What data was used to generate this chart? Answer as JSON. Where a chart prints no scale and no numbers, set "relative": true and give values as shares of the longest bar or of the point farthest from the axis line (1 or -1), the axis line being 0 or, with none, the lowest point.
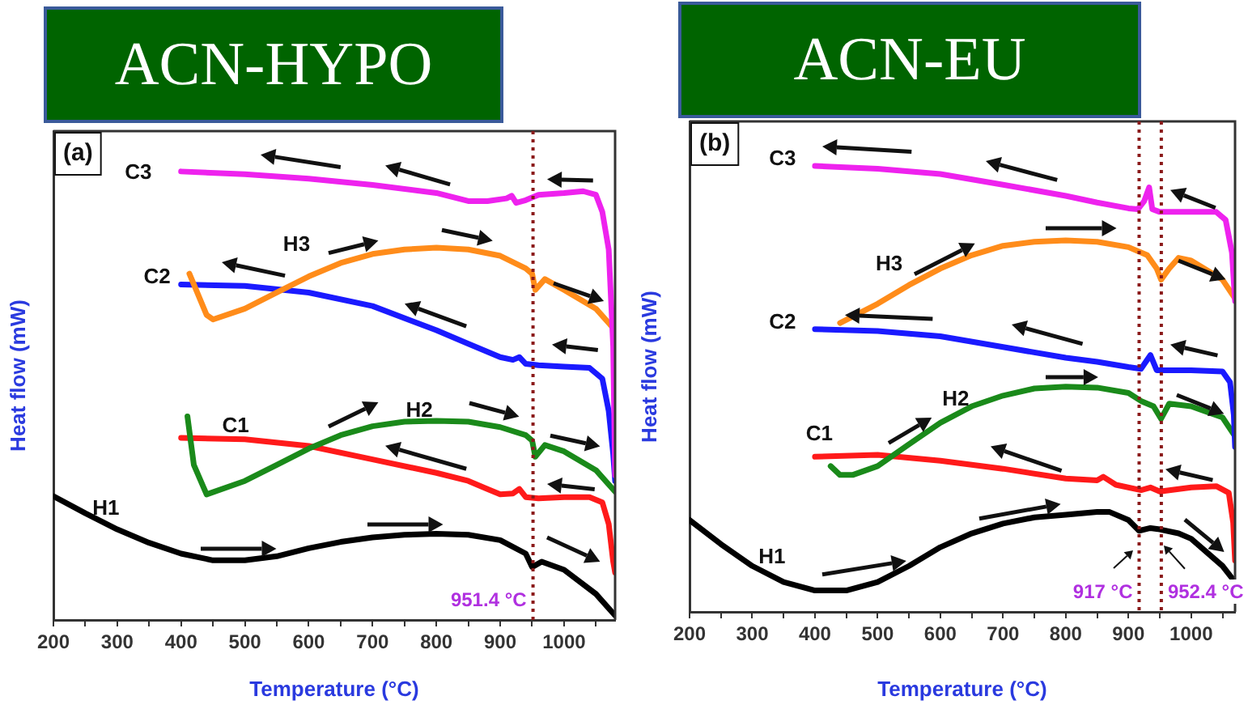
{
  "chart_data": [
    {
      "type": "line",
      "title": "ACN-HYPO",
      "xlabel": "Temperature (°C)",
      "ylabel": "Heat flow (mW)",
      "relative": true,
      "marker": "none",
      "grid": false,
      "annotations": [
        "(a)"
      ],
      "xlim": [
        200,
        1080
      ],
      "xticks": [
        200,
        {
          "value": 250,
          "label": null
        },
        300,
        {
          "value": 350,
          "label": null
        },
        400,
        {
          "value": 450,
          "label": null
        },
        500,
        {
          "value": 550,
          "label": null
        },
        600,
        {
          "value": 650,
          "label": null
        },
        700,
        {
          "value": 750,
          "label": null
        },
        800,
        {
          "value": 850,
          "label": null
        },
        900,
        {
          "value": 950,
          "label": null
        },
        1000,
        {
          "value": 1050,
          "label": null
        }
      ],
      "ref_lines": [
        {
          "axis": "x",
          "value": 951.4,
          "label": "951.4 °C",
          "color": "#8b1a1a",
          "line_style": "dotted"
        }
      ],
      "series": [
        {
          "name": "C3",
          "color": "#ee22ee",
          "x": [
            400,
            500,
            600,
            700,
            800,
            850,
            880,
            910,
            918,
            925,
            940,
            960,
            1000,
            1030,
            1050,
            1060,
            1070,
            1077,
            1080
          ],
          "values": [
            1.0,
            0.994,
            0.984,
            0.97,
            0.952,
            0.934,
            0.934,
            0.94,
            0.946,
            0.93,
            0.936,
            0.948,
            0.952,
            0.956,
            0.948,
            0.91,
            0.826,
            0.61,
            0.322
          ]
        },
        {
          "name": "H3",
          "color": "#ff8c1a",
          "x": [
            413,
            440,
            450,
            500,
            550,
            600,
            650,
            700,
            750,
            800,
            850,
            900,
            940,
            950,
            955,
            970,
            1000,
            1050,
            1080
          ],
          "values": [
            0.772,
            0.68,
            0.67,
            0.694,
            0.73,
            0.766,
            0.796,
            0.816,
            0.826,
            0.83,
            0.826,
            0.812,
            0.784,
            0.772,
            0.736,
            0.76,
            0.736,
            0.694,
            0.646
          ]
        },
        {
          "name": "C2",
          "color": "#1a1aff",
          "x": [
            400,
            500,
            600,
            700,
            800,
            850,
            900,
            920,
            930,
            940,
            960,
            1000,
            1040,
            1060,
            1070,
            1077,
            1080
          ],
          "values": [
            0.748,
            0.745,
            0.73,
            0.7,
            0.646,
            0.616,
            0.586,
            0.58,
            0.586,
            0.571,
            0.568,
            0.565,
            0.562,
            0.538,
            0.466,
            0.37,
            0.31
          ]
        },
        {
          "name": "H2",
          "color": "#1a8a1a",
          "x": [
            410,
            420,
            440,
            500,
            550,
            600,
            650,
            700,
            750,
            800,
            850,
            900,
            940,
            950,
            955,
            970,
            1000,
            1050,
            1080
          ],
          "values": [
            0.454,
            0.346,
            0.28,
            0.31,
            0.346,
            0.382,
            0.412,
            0.432,
            0.442,
            0.444,
            0.442,
            0.43,
            0.412,
            0.4,
            0.364,
            0.39,
            0.376,
            0.334,
            0.286
          ]
        },
        {
          "name": "C1",
          "color": "#ff1a1a",
          "x": [
            400,
            500,
            600,
            700,
            800,
            850,
            880,
            900,
            920,
            930,
            940,
            960,
            1000,
            1040,
            1060,
            1070,
            1077,
            1080
          ],
          "values": [
            0.406,
            0.403,
            0.388,
            0.358,
            0.328,
            0.31,
            0.292,
            0.28,
            0.282,
            0.292,
            0.274,
            0.271,
            0.274,
            0.274,
            0.262,
            0.214,
            0.13,
            0.106
          ]
        },
        {
          "name": "H1",
          "color": "#000000",
          "x": [
            200,
            250,
            300,
            350,
            400,
            450,
            500,
            550,
            600,
            650,
            700,
            750,
            800,
            850,
            900,
            940,
            950,
            965,
            1000,
            1050,
            1080
          ],
          "values": [
            0.276,
            0.238,
            0.202,
            0.172,
            0.148,
            0.133,
            0.133,
            0.142,
            0.16,
            0.174,
            0.184,
            0.19,
            0.192,
            0.19,
            0.178,
            0.148,
            0.118,
            0.13,
            0.112,
            0.058,
            0.01
          ]
        }
      ]
    },
    {
      "type": "line",
      "title": "ACN-EU",
      "xlabel": "Temperature (°C)",
      "ylabel": "Heat flow (mW)",
      "relative": true,
      "marker": "none",
      "grid": false,
      "annotations": [
        "(b)"
      ],
      "xlim": [
        200,
        1070
      ],
      "xticks": [
        200,
        {
          "value": 250,
          "label": null
        },
        300,
        {
          "value": 350,
          "label": null
        },
        400,
        {
          "value": 450,
          "label": null
        },
        500,
        {
          "value": 550,
          "label": null
        },
        600,
        {
          "value": 650,
          "label": null
        },
        700,
        {
          "value": 750,
          "label": null
        },
        800,
        {
          "value": 850,
          "label": null
        },
        900,
        {
          "value": 950,
          "label": null
        },
        1000,
        {
          "value": 1050,
          "label": null
        }
      ],
      "ref_lines": [
        {
          "axis": "x",
          "value": 917,
          "label": "917 °C",
          "color": "#8b1a1a",
          "line_style": "dotted"
        },
        {
          "axis": "x",
          "value": 952.4,
          "label": "952.4 °C",
          "color": "#8b1a1a",
          "line_style": "dotted"
        }
      ],
      "series": [
        {
          "name": "C3",
          "color": "#ee22ee",
          "x": [
            400,
            500,
            600,
            700,
            800,
            850,
            900,
            915,
            925,
            933,
            938,
            950,
            1000,
            1040,
            1055,
            1065,
            1070
          ],
          "values": [
            1.0,
            0.994,
            0.982,
            0.958,
            0.933,
            0.918,
            0.905,
            0.903,
            0.921,
            0.952,
            0.903,
            0.897,
            0.897,
            0.897,
            0.879,
            0.806,
            0.697
          ]
        },
        {
          "name": "H3",
          "color": "#ff8c1a",
          "x": [
            440,
            500,
            550,
            600,
            650,
            700,
            750,
            800,
            850,
            900,
            930,
            945,
            952,
            965,
            980,
            1000,
            1050,
            1070
          ],
          "values": [
            0.648,
            0.691,
            0.733,
            0.77,
            0.8,
            0.821,
            0.83,
            0.833,
            0.83,
            0.818,
            0.8,
            0.77,
            0.745,
            0.77,
            0.794,
            0.788,
            0.745,
            0.703
          ]
        },
        {
          "name": "C2",
          "color": "#1a1aff",
          "x": [
            400,
            500,
            600,
            700,
            800,
            850,
            900,
            920,
            935,
            945,
            960,
            1000,
            1050,
            1062,
            1068,
            1070
          ],
          "values": [
            0.634,
            0.63,
            0.618,
            0.594,
            0.57,
            0.561,
            0.549,
            0.545,
            0.576,
            0.542,
            0.542,
            0.542,
            0.539,
            0.515,
            0.442,
            0.37
          ]
        },
        {
          "name": "H2",
          "color": "#1a8a1a",
          "x": [
            425,
            440,
            460,
            500,
            550,
            600,
            650,
            700,
            750,
            800,
            850,
            900,
            920,
            940,
            952,
            965,
            1000,
            1050,
            1070
          ],
          "values": [
            0.327,
            0.307,
            0.307,
            0.327,
            0.376,
            0.424,
            0.461,
            0.485,
            0.501,
            0.505,
            0.503,
            0.491,
            0.473,
            0.461,
            0.433,
            0.467,
            0.461,
            0.436,
            0.394
          ]
        },
        {
          "name": "C1",
          "color": "#ff1a1a",
          "x": [
            400,
            500,
            600,
            700,
            800,
            850,
            860,
            880,
            920,
            935,
            950,
            1000,
            1040,
            1060,
            1067,
            1070
          ],
          "values": [
            0.348,
            0.352,
            0.339,
            0.321,
            0.299,
            0.295,
            0.303,
            0.285,
            0.273,
            0.279,
            0.27,
            0.279,
            0.282,
            0.267,
            0.2,
            0.115
          ]
        },
        {
          "name": "H1",
          "color": "#000000",
          "x": [
            200,
            250,
            300,
            350,
            400,
            450,
            500,
            550,
            600,
            650,
            700,
            750,
            800,
            850,
            870,
            900,
            917,
            935,
            950,
            980,
            1000,
            1050,
            1070
          ],
          "values": [
            0.206,
            0.152,
            0.103,
            0.067,
            0.048,
            0.048,
            0.067,
            0.103,
            0.145,
            0.176,
            0.198,
            0.212,
            0.218,
            0.224,
            0.224,
            0.206,
            0.182,
            0.188,
            0.185,
            0.176,
            0.164,
            0.103,
            0.067
          ]
        }
      ]
    }
  ]
}
